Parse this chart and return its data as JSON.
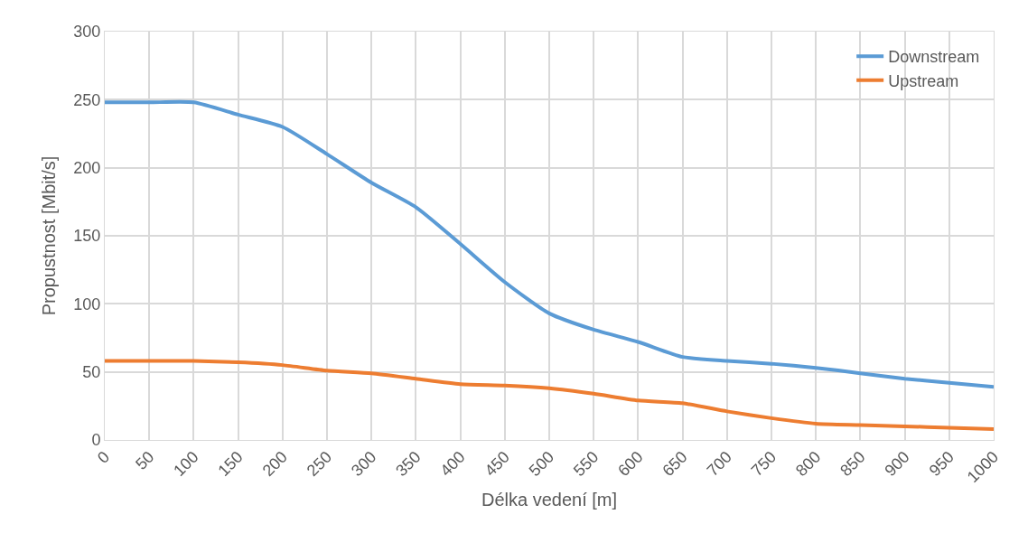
{
  "chart_data": {
    "type": "line",
    "xlabel": "Délka vedení [m]",
    "ylabel": "Propustnost [Mbit/s]",
    "x": [
      0,
      50,
      100,
      150,
      200,
      250,
      300,
      350,
      400,
      450,
      500,
      550,
      600,
      650,
      700,
      750,
      800,
      850,
      900,
      950,
      1000
    ],
    "series": [
      {
        "name": "Downstream",
        "color": "#5b9bd5",
        "values": [
          248,
          248,
          248,
          239,
          230,
          210,
          189,
          171,
          144,
          116,
          93,
          81,
          72,
          61,
          58,
          56,
          53,
          49,
          45,
          42,
          39
        ]
      },
      {
        "name": "Upstream",
        "color": "#ed7d31",
        "values": [
          58,
          58,
          58,
          57,
          55,
          51,
          49,
          45,
          41,
          40,
          38,
          34,
          29,
          27,
          21,
          16,
          12,
          11,
          10,
          9,
          8
        ]
      }
    ],
    "xlim": [
      0,
      1000
    ],
    "xticks": [
      0,
      50,
      100,
      150,
      200,
      250,
      300,
      350,
      400,
      450,
      500,
      550,
      600,
      650,
      700,
      750,
      800,
      850,
      900,
      950,
      1000
    ],
    "ylim": [
      0,
      300
    ],
    "yticks": [
      0,
      50,
      100,
      150,
      200,
      250,
      300
    ],
    "grid": true,
    "legend": "top right",
    "marker": "none",
    "line_style": "solid"
  }
}
